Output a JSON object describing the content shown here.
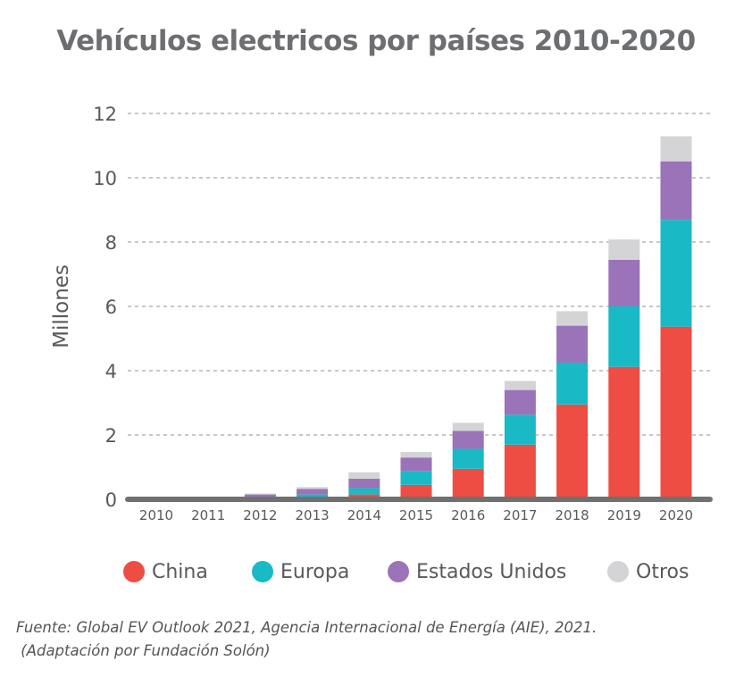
{
  "chart_data": {
    "type": "bar",
    "stacked": true,
    "title": "Vehículos electricos por países 2010-2020",
    "ylabel": "Millones",
    "xlabel": "",
    "ylim": [
      0,
      12
    ],
    "yticks": [
      0,
      2,
      4,
      6,
      8,
      10,
      12
    ],
    "grid": true,
    "legend_position": "bottom",
    "categories": [
      "2010",
      "2011",
      "2012",
      "2013",
      "2014",
      "2015",
      "2016",
      "2017",
      "2018",
      "2019",
      "2020"
    ],
    "series": [
      {
        "name": "China",
        "color": "#ee4d44",
        "values": [
          0,
          0.01,
          0.03,
          0.05,
          0.15,
          0.45,
          0.95,
          1.7,
          2.95,
          4.12,
          5.37
        ]
      },
      {
        "name": "Europa",
        "color": "#1ab9c6",
        "values": [
          0,
          0.01,
          0.05,
          0.1,
          0.2,
          0.42,
          0.62,
          0.93,
          1.3,
          1.88,
          3.32
        ]
      },
      {
        "name": "Estados Unidos",
        "color": "#9a73b8",
        "values": [
          0,
          0.01,
          0.07,
          0.17,
          0.29,
          0.43,
          0.56,
          0.77,
          1.15,
          1.45,
          1.82
        ]
      },
      {
        "name": "Otros",
        "color": "#d4d4d6",
        "values": [
          0,
          0.01,
          0.03,
          0.06,
          0.2,
          0.17,
          0.25,
          0.28,
          0.45,
          0.63,
          0.78
        ]
      }
    ]
  },
  "legend": {
    "items": [
      {
        "label": "China",
        "color": "#ee4d44"
      },
      {
        "label": "Europa",
        "color": "#1ab9c6"
      },
      {
        "label": "Estados Unidos",
        "color": "#9a73b8"
      },
      {
        "label": "Otros",
        "color": "#d4d4d6"
      }
    ]
  },
  "source": {
    "line1": "Fuente: Global EV Outlook 2021, Agencia Internacional de Energía (AIE), 2021.",
    "line2": " (Adaptación por Fundación Solón)"
  }
}
